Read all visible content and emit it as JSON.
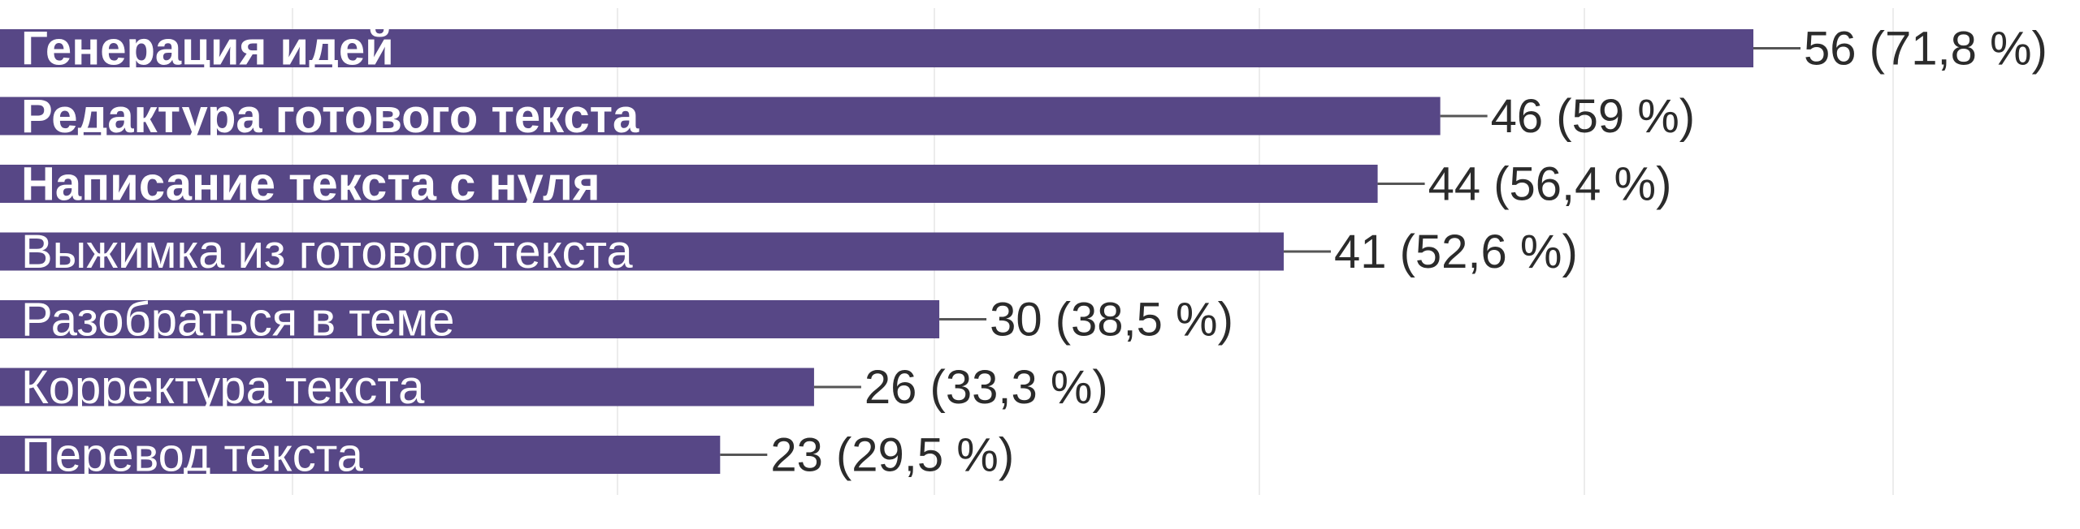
{
  "chart_data": {
    "type": "bar",
    "orientation": "horizontal",
    "categories": [
      "Генерация идей",
      "Редактура готового текста",
      "Написание текста с нуля",
      "Выжимка из готового текста",
      "Разобраться в теме",
      "Корректура текста",
      "Перевод текста"
    ],
    "values": [
      56,
      46,
      44,
      41,
      30,
      26,
      23
    ],
    "percents": [
      71.8,
      59,
      56.4,
      52.6,
      38.5,
      33.3,
      29.5
    ],
    "value_labels": [
      "56 (71,8 %)",
      "46 (59 %)",
      "44 (56,4 %)",
      "41 (52,6 %)",
      "30 (38,5 %)",
      "26 (33,3 %)",
      "23 (29,5 %)"
    ],
    "bold_labels": [
      true,
      true,
      true,
      false,
      false,
      false,
      false
    ],
    "xlim": [
      0,
      56
    ],
    "title": "",
    "xlabel": "",
    "ylabel": "",
    "grid": true,
    "legend": "none"
  },
  "colors": {
    "bar": "#574786",
    "bar_text": "#ffffff",
    "value_text": "#2b2b2b",
    "leader": "#555555",
    "grid": "#ececec",
    "background": "#ffffff"
  }
}
